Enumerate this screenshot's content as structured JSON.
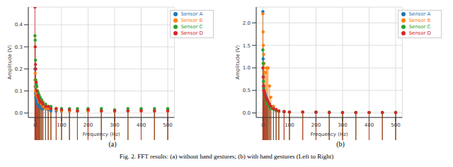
{
  "caption": "Fig. 2. FFT results: (a) without hand gestures; (b) with hand gestures (Left to Right)",
  "chart_data": [
    {
      "type": "stem",
      "annotations": [
        "(a)"
      ],
      "x_label": "Frequency (Hz)",
      "y_label": "Amplitude (V)",
      "xlim": [
        -25,
        525
      ],
      "xticks": [
        0,
        100,
        200,
        300,
        400,
        500
      ],
      "ylim": [
        -0.02,
        0.48
      ],
      "yticks": [
        {
          "value": 0,
          "label": "0.0"
        },
        {
          "value": 0.1,
          "label": "0.1"
        },
        {
          "value": 0.2,
          "label": "0.2"
        },
        {
          "value": 0.3,
          "label": "0.3"
        },
        {
          "value": 0.4,
          "label": "0.4"
        }
      ],
      "grid": true,
      "legend": "upper right",
      "x": [
        0,
        1,
        2,
        3,
        5,
        7,
        10,
        13,
        16,
        20,
        25,
        30,
        40,
        50,
        60,
        80,
        100,
        130,
        160,
        200,
        250,
        300,
        350,
        400,
        450,
        500
      ],
      "series": [
        {
          "name": "Sensor A",
          "color": "#1f77b4",
          "marker": "o",
          "values": [
            0.2,
            0.12,
            0.09,
            0.07,
            0.06,
            0.05,
            0.04,
            0.04,
            0.03,
            0.03,
            0.02,
            0.02,
            0.02,
            0.015,
            0.01,
            0.01,
            0.01,
            0.01,
            0.01,
            0.01,
            0.01,
            0.01,
            0.01,
            0.015,
            0.01,
            0.015
          ]
        },
        {
          "name": "Sensor B",
          "color": "#ff7f0e",
          "marker": "o",
          "values": [
            0.15,
            0.18,
            0.1,
            0.12,
            0.09,
            0.08,
            0.07,
            0.06,
            0.05,
            0.05,
            0.04,
            0.03,
            0.02,
            0.02,
            0.02,
            0.015,
            0.01,
            0.01,
            0.01,
            0.01,
            0.01,
            0.01,
            0.01,
            0.01,
            0.01,
            0.01
          ]
        },
        {
          "name": "Sensor C",
          "color": "#2ca02c",
          "marker": "o",
          "values": [
            0.35,
            0.33,
            0.24,
            0.15,
            0.13,
            0.12,
            0.1,
            0.09,
            0.08,
            0.07,
            0.06,
            0.05,
            0.04,
            0.03,
            0.03,
            0.02,
            0.02,
            0.02,
            0.02,
            0.02,
            0.02,
            0.015,
            0.02,
            0.02,
            0.02,
            0.02
          ]
        },
        {
          "name": "Sensor D",
          "color": "#d62728",
          "marker": "o",
          "values": [
            0.48,
            0.3,
            0.22,
            0.2,
            0.14,
            0.1,
            0.08,
            0.07,
            0.06,
            0.05,
            0.05,
            0.04,
            0.03,
            0.03,
            0.02,
            0.02,
            0.015,
            0.015,
            0.01,
            0.015,
            0.01,
            0.01,
            0.01,
            0.01,
            0.01,
            0.01
          ]
        }
      ]
    },
    {
      "type": "stem",
      "annotations": [
        "(b)"
      ],
      "x_label": "Frequency (Hz)",
      "y_label": "Amplitude (V)",
      "xlim": [
        -25,
        525
      ],
      "xticks": [
        0,
        100,
        200,
        300,
        400,
        500
      ],
      "ylim": [
        -0.1,
        2.35
      ],
      "yticks": [
        {
          "value": 0,
          "label": "0.0"
        },
        {
          "value": 0.5,
          "label": "0.5"
        },
        {
          "value": 1,
          "label": "1.0"
        },
        {
          "value": 1.5,
          "label": "1.5"
        },
        {
          "value": 2,
          "label": "2.0"
        }
      ],
      "grid": true,
      "legend": "upper right",
      "x": [
        0,
        1,
        2,
        3,
        5,
        7,
        10,
        13,
        16,
        20,
        25,
        30,
        40,
        50,
        60,
        80,
        100,
        150,
        200,
        250,
        300,
        350,
        400,
        450,
        500
      ],
      "series": [
        {
          "name": "Sensor A",
          "color": "#1f77b4",
          "marker": "o",
          "values": [
            2.25,
            1.2,
            0.8,
            0.6,
            0.5,
            0.45,
            0.4,
            0.35,
            0.3,
            0.25,
            0.2,
            0.15,
            0.1,
            0.06,
            0.04,
            0.03,
            0.02,
            0.02,
            0.01,
            0.01,
            0.01,
            0.01,
            0.01,
            0.01,
            0.01
          ]
        },
        {
          "name": "Sensor B",
          "color": "#ff7f0e",
          "marker": "o",
          "values": [
            2.2,
            1.8,
            1.5,
            1.3,
            1.1,
            0.9,
            0.9,
            1.0,
            1.0,
            1.0,
            0.6,
            0.35,
            0.15,
            0.08,
            0.05,
            0.03,
            0.02,
            0.02,
            0.02,
            0.01,
            0.01,
            0.01,
            0.01,
            0.01,
            0.01
          ]
        },
        {
          "name": "Sensor C",
          "color": "#2ca02c",
          "marker": "o",
          "values": [
            1.4,
            1.1,
            0.7,
            0.55,
            0.4,
            0.35,
            0.3,
            0.25,
            0.2,
            0.2,
            0.15,
            0.1,
            0.08,
            0.05,
            0.04,
            0.03,
            0.02,
            0.02,
            0.02,
            0.02,
            0.01,
            0.01,
            0.01,
            0.01,
            0.01
          ]
        },
        {
          "name": "Sensor D",
          "color": "#d62728",
          "marker": "o",
          "values": [
            1.0,
            0.8,
            0.6,
            0.5,
            0.45,
            0.4,
            0.35,
            0.3,
            0.3,
            0.25,
            0.2,
            0.15,
            0.1,
            0.07,
            0.04,
            0.03,
            0.02,
            0.02,
            0.02,
            0.01,
            0.01,
            0.01,
            0.01,
            0.01,
            0.01
          ]
        }
      ]
    }
  ]
}
